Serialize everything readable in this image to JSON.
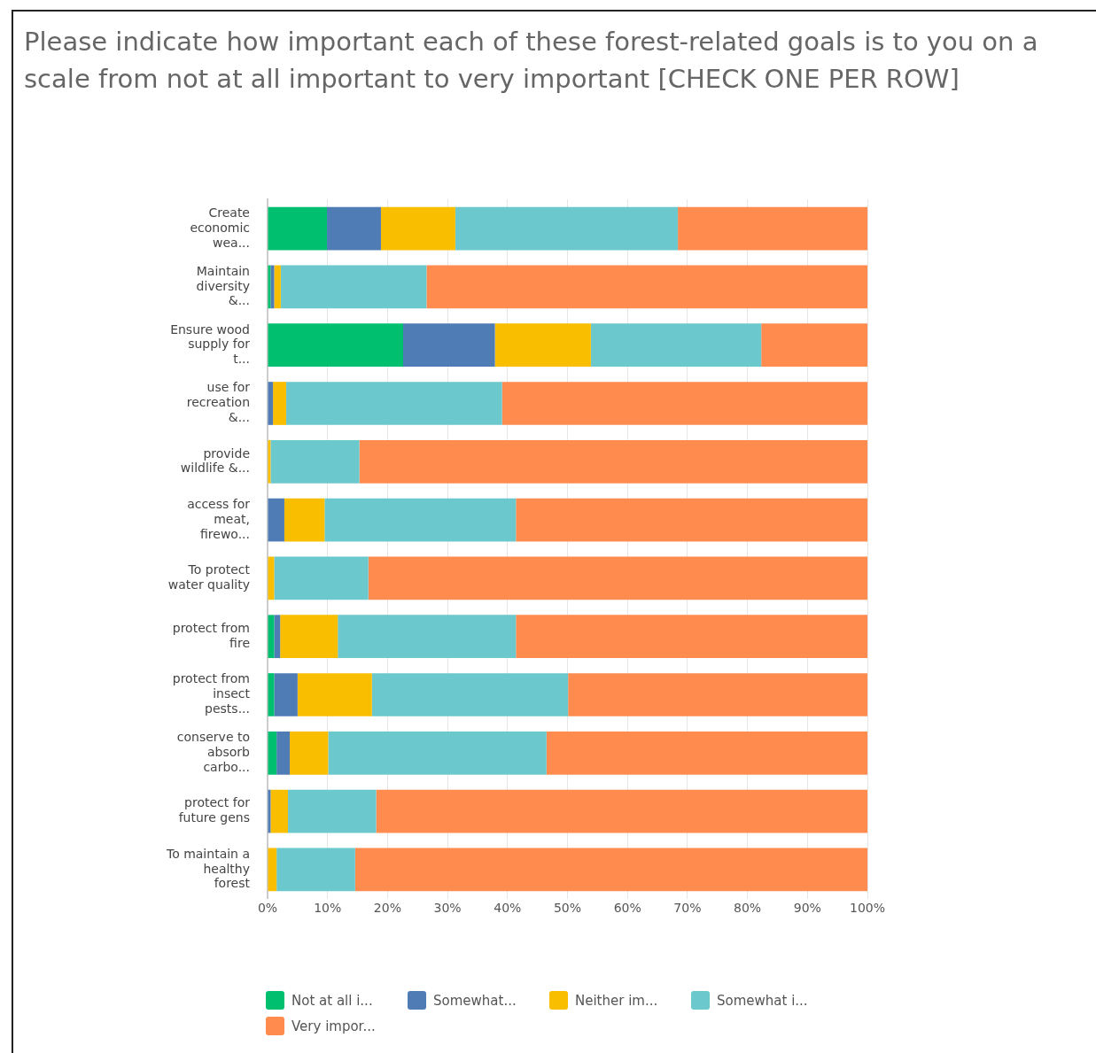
{
  "chart_data": {
    "type": "bar",
    "orientation": "horizontal",
    "stacked": true,
    "title": "Please indicate how important each of these forest-related goals is to you on a scale from not at all important to very important [CHECK ONE PER ROW]",
    "categories": [
      "Create economic wea...",
      "Maintain diversity &...",
      "Ensure wood supply for t...",
      "use for recreation &...",
      "provide wildlife &...",
      "access for meat, firewo...",
      "To protect water quality",
      "protect from fire",
      "protect from insect pests...",
      "conserve to absorb carbo...",
      "protect for future gens",
      "To maintain a healthy forest"
    ],
    "series": [
      {
        "name": "Not at all i...",
        "color": "#00bf6f",
        "values": [
          9.9,
          0.5,
          22.6,
          0,
          0,
          0,
          0,
          1.1,
          1.1,
          1.5,
          0,
          0
        ]
      },
      {
        "name": "Somewhat...",
        "color": "#507cb6",
        "values": [
          9.0,
          0.6,
          15.3,
          0.9,
          0,
          2.8,
          0,
          1.0,
          3.9,
          2.2,
          0.5,
          0
        ]
      },
      {
        "name": "Neither im...",
        "color": "#f9be00",
        "values": [
          12.4,
          1.1,
          16.0,
          2.2,
          0.5,
          6.7,
          1.1,
          9.6,
          12.4,
          6.4,
          2.9,
          1.5
        ]
      },
      {
        "name": "Somewhat i...",
        "color": "#6bc8cd",
        "values": [
          37.1,
          24.3,
          28.4,
          36.0,
          14.8,
          31.9,
          15.7,
          29.7,
          32.7,
          36.4,
          14.7,
          13.1
        ]
      },
      {
        "name": "Very impor...",
        "color": "#ff8b4f",
        "values": [
          31.6,
          73.5,
          17.7,
          60.9,
          84.7,
          58.6,
          83.2,
          58.6,
          49.9,
          53.5,
          81.9,
          85.4
        ]
      }
    ],
    "xlim": [
      0,
      100
    ],
    "xticks": [
      {
        "value": 0,
        "label": "0%"
      },
      {
        "value": 10,
        "label": "10%"
      },
      {
        "value": 20,
        "label": "20%"
      },
      {
        "value": 30,
        "label": "30%"
      },
      {
        "value": 40,
        "label": "40%"
      },
      {
        "value": 50,
        "label": "50%"
      },
      {
        "value": 60,
        "label": "60%"
      },
      {
        "value": 70,
        "label": "70%"
      },
      {
        "value": 80,
        "label": "80%"
      },
      {
        "value": 90,
        "label": "90%"
      },
      {
        "value": 100,
        "label": "100%"
      }
    ],
    "grid": "x",
    "legend": "bottom"
  }
}
